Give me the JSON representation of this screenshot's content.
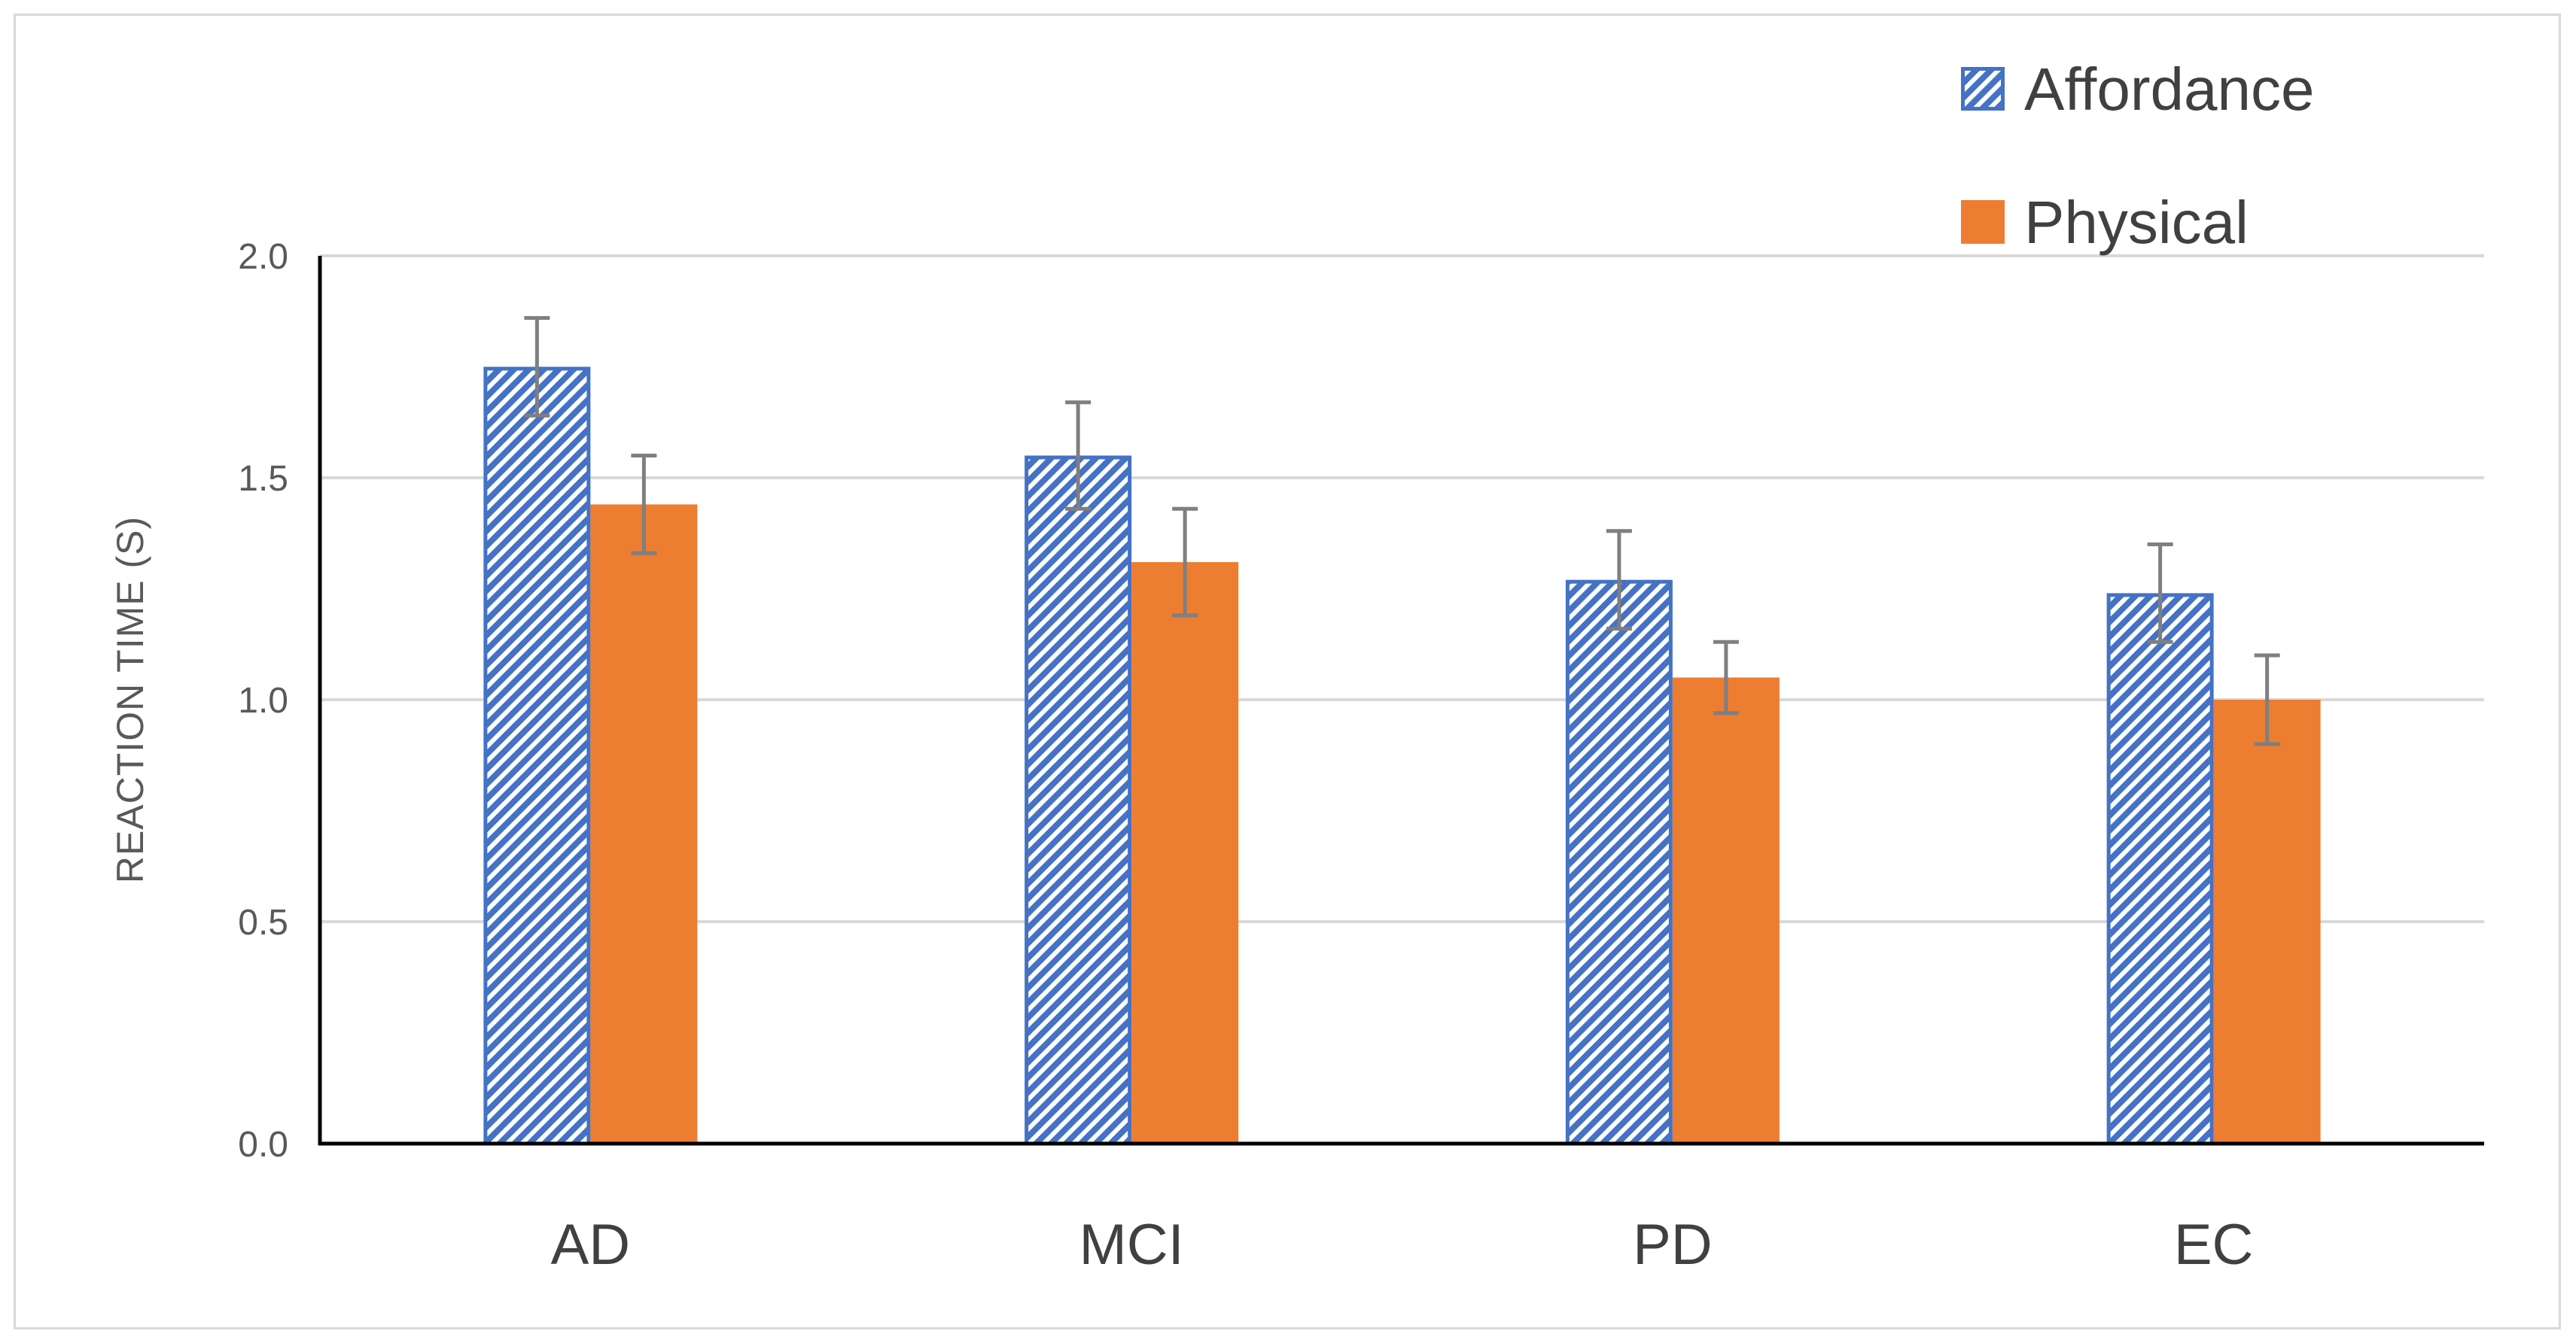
{
  "chart_data": {
    "type": "bar",
    "title": "",
    "xlabel": "",
    "ylabel": "REACTION TIME (S)",
    "categories": [
      "AD",
      "MCI",
      "PD",
      "EC"
    ],
    "series": [
      {
        "name": "Affordance",
        "values": [
          1.75,
          1.55,
          1.27,
          1.24
        ],
        "errors": [
          0.11,
          0.12,
          0.11,
          0.11
        ],
        "fill": "hatched",
        "color": "#4472c4"
      },
      {
        "name": "Physical",
        "values": [
          1.44,
          1.31,
          1.05,
          1.0
        ],
        "errors": [
          0.11,
          0.12,
          0.08,
          0.1
        ],
        "fill": "solid",
        "color": "#ed7d31"
      }
    ],
    "ylim": [
      0,
      2.0
    ],
    "yticks": [
      0.0,
      0.5,
      1.0,
      1.5,
      2.0
    ],
    "ytick_labels": [
      "0.0",
      "0.5",
      "1.0",
      "1.5",
      "2.0"
    ],
    "grid": true,
    "legend_position": "top-right",
    "error_bar_color": "#7f7f7f",
    "gridline_color": "#d9d9d9",
    "axis_color": "#000000"
  }
}
